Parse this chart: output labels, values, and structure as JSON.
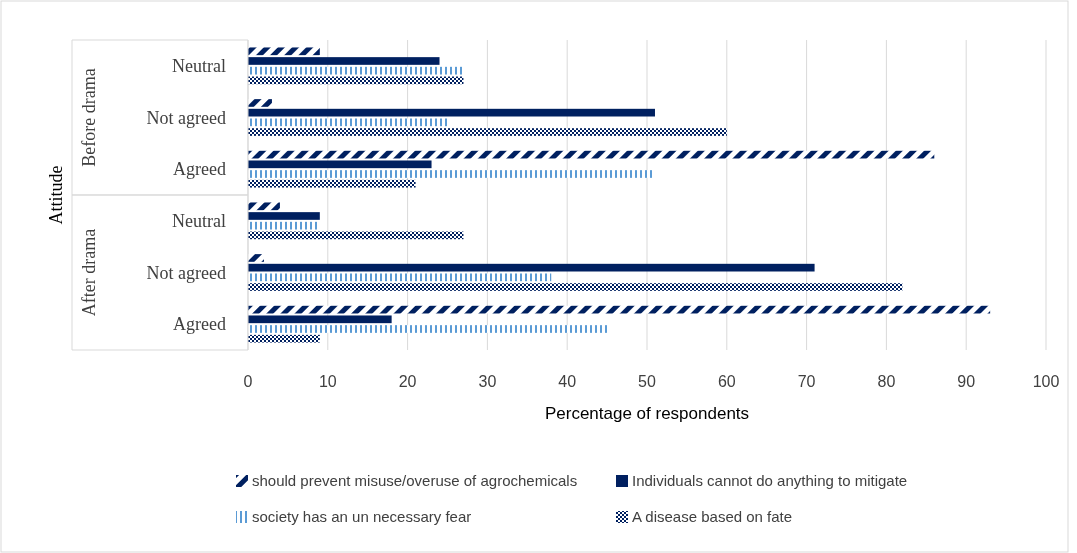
{
  "chart_data": {
    "type": "bar",
    "orientation": "horizontal",
    "ylabel": "Attitude",
    "xlabel": "Percentage of respondents",
    "categories": [
      "Neutral",
      "Not agreed",
      "Agreed",
      "Neutral",
      "Not agreed",
      "Agreed"
    ],
    "annotations": [
      "Before drama",
      "After drama"
    ],
    "series": [
      {
        "name": "should prevent misuse/overuse of agrochemicals",
        "color": "#002060",
        "values": [
          9,
          3,
          86,
          4,
          2,
          93
        ]
      },
      {
        "name": "Individuals cannot do anything to mitigate",
        "color": "#002060",
        "values": [
          24,
          51,
          23,
          9,
          71,
          18
        ]
      },
      {
        "name": "society has an un necessary fear",
        "color": "#5b9bd5",
        "values": [
          27,
          25,
          51,
          9,
          38,
          45
        ]
      },
      {
        "name": "A disease based on fate",
        "color": "#002060",
        "values": [
          27,
          60,
          21,
          27,
          82,
          9
        ]
      }
    ],
    "xlim": [
      0,
      100
    ],
    "xticks": [
      0,
      10,
      20,
      30,
      40,
      50,
      60,
      70,
      80,
      90,
      100
    ],
    "grid": "x",
    "legend": "bottom"
  }
}
